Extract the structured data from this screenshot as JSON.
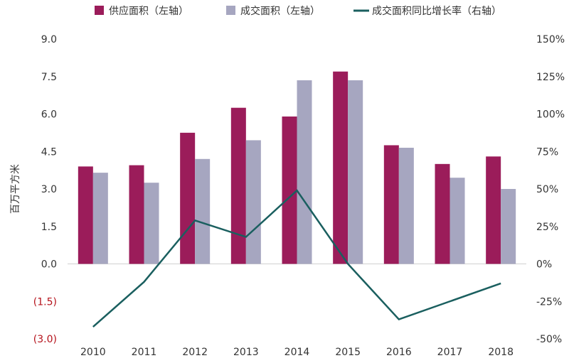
{
  "chart_data": {
    "type": "bar",
    "title": "",
    "categories": [
      "2010",
      "2011",
      "2012",
      "2013",
      "2014",
      "2015",
      "2016",
      "2017",
      "2018"
    ],
    "series": [
      {
        "name": "供应面积（左轴）",
        "kind": "bar",
        "axis": "left",
        "color": "#9b1c5a",
        "values": [
          3.9,
          3.95,
          5.25,
          6.25,
          5.9,
          7.7,
          4.75,
          4.0,
          4.3
        ]
      },
      {
        "name": "成交面积（左轴）",
        "kind": "bar",
        "axis": "left",
        "color": "#a6a6c0",
        "values": [
          3.65,
          3.25,
          4.2,
          4.95,
          7.35,
          7.35,
          4.65,
          3.45,
          3.0
        ]
      },
      {
        "name": "成交面积同比增长率（右轴）",
        "kind": "line",
        "axis": "right",
        "color": "#1a5f5f",
        "values": [
          -42,
          -12,
          29,
          18,
          49,
          0,
          -37,
          -25,
          -13
        ]
      }
    ],
    "ylabel": "百万平方米",
    "ylim": [
      -3.0,
      9.0
    ],
    "y_ticks": [
      "(3.0)",
      "(1.5)",
      "0.0",
      "1.5",
      "3.0",
      "4.5",
      "6.0",
      "7.5",
      "9.0"
    ],
    "y2lim": [
      -50,
      150
    ],
    "y2_ticks": [
      "-50%",
      "-25%",
      "0%",
      "25%",
      "50%",
      "75%",
      "100%",
      "125%",
      "150%"
    ],
    "legend_position": "top",
    "grid": false
  }
}
